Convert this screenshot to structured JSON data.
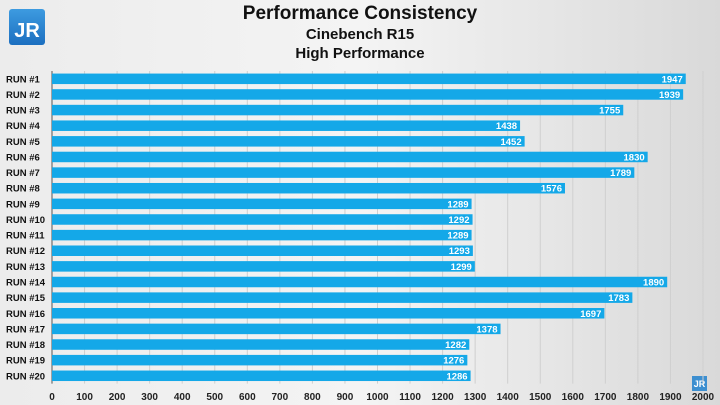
{
  "chart_data": {
    "type": "bar",
    "orientation": "horizontal",
    "title": "Performance Consistency",
    "subtitle": "Cinebench R15",
    "subtitle2": "High Performance",
    "categories": [
      "RUN #1",
      "RUN #2",
      "RUN #3",
      "RUN #4",
      "RUN #5",
      "RUN #6",
      "RUN #7",
      "RUN #8",
      "RUN #9",
      "RUN #10",
      "RUN #11",
      "RUN #12",
      "RUN #13",
      "RUN #14",
      "RUN #15",
      "RUN #16",
      "RUN #17",
      "RUN #18",
      "RUN #19",
      "RUN #20"
    ],
    "values": [
      1947,
      1939,
      1755,
      1438,
      1452,
      1830,
      1789,
      1576,
      1289,
      1292,
      1289,
      1293,
      1299,
      1890,
      1783,
      1697,
      1378,
      1282,
      1276,
      1286
    ],
    "xlim": [
      0,
      2000
    ],
    "xticks": [
      0,
      100,
      200,
      300,
      400,
      500,
      600,
      700,
      800,
      900,
      1000,
      1100,
      1200,
      1300,
      1400,
      1500,
      1600,
      1700,
      1800,
      1900,
      2000
    ],
    "grid": true,
    "data_labels": true,
    "bar_color": "#14a8e8"
  },
  "logo": {
    "text": "JR"
  }
}
